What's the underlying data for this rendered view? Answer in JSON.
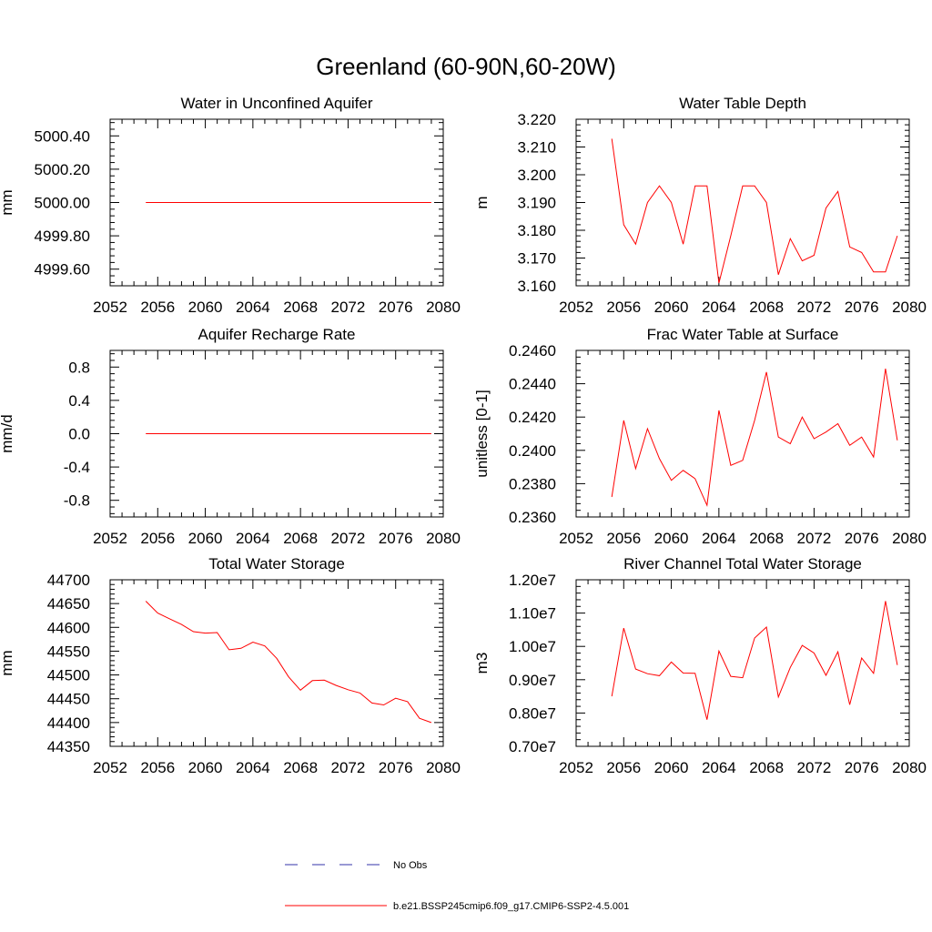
{
  "figure_title": "Greenland (60-90N,60-20W)",
  "chart_data": [
    {
      "type": "line",
      "title": "Water in Unconfined Aquifer",
      "ylabel": "mm",
      "xlim": [
        2052,
        2080
      ],
      "ylim": [
        4999.5,
        5000.5
      ],
      "xticks": [
        2052,
        2056,
        2060,
        2064,
        2068,
        2072,
        2076,
        2080
      ],
      "xtick_labels": [
        "2052",
        "2056",
        "2060",
        "2064",
        "2068",
        "2072",
        "2076",
        "2080"
      ],
      "yticks": [
        4999.6,
        4999.8,
        5000.0,
        5000.2,
        5000.4
      ],
      "ytick_labels": [
        "4999.60",
        "4999.80",
        "5000.00",
        "5000.20",
        "5000.40"
      ],
      "series": [
        {
          "color": "#ff0000",
          "x": [
            2055,
            2056,
            2057,
            2058,
            2059,
            2060,
            2061,
            2062,
            2063,
            2064,
            2065,
            2066,
            2067,
            2068,
            2069,
            2070,
            2071,
            2072,
            2073,
            2074,
            2075,
            2076,
            2077,
            2078,
            2079
          ],
          "y": [
            5000,
            5000,
            5000,
            5000,
            5000,
            5000,
            5000,
            5000,
            5000,
            5000,
            5000,
            5000,
            5000,
            5000,
            5000,
            5000,
            5000,
            5000,
            5000,
            5000,
            5000,
            5000,
            5000,
            5000,
            5000
          ]
        }
      ]
    },
    {
      "type": "line",
      "title": "Water Table Depth",
      "ylabel": "m",
      "xlim": [
        2052,
        2080
      ],
      "ylim": [
        3.16,
        3.22
      ],
      "xticks": [
        2052,
        2056,
        2060,
        2064,
        2068,
        2072,
        2076,
        2080
      ],
      "xtick_labels": [
        "2052",
        "2056",
        "2060",
        "2064",
        "2068",
        "2072",
        "2076",
        "2080"
      ],
      "yticks": [
        3.16,
        3.17,
        3.18,
        3.19,
        3.2,
        3.21,
        3.22
      ],
      "ytick_labels": [
        "3.160",
        "3.170",
        "3.180",
        "3.190",
        "3.200",
        "3.210",
        "3.220"
      ],
      "series": [
        {
          "color": "#ff0000",
          "x": [
            2055,
            2056,
            2057,
            2058,
            2059,
            2060,
            2061,
            2062,
            2063,
            2064,
            2065,
            2066,
            2067,
            2068,
            2069,
            2070,
            2071,
            2072,
            2073,
            2074,
            2075,
            2076,
            2077,
            2078,
            2079
          ],
          "y": [
            3.213,
            3.182,
            3.175,
            3.19,
            3.196,
            3.19,
            3.175,
            3.196,
            3.196,
            3.161,
            3.178,
            3.196,
            3.196,
            3.19,
            3.164,
            3.177,
            3.169,
            3.171,
            3.188,
            3.194,
            3.174,
            3.172,
            3.165,
            3.165,
            3.178
          ]
        }
      ]
    },
    {
      "type": "line",
      "title": "Aquifer Recharge Rate",
      "ylabel": "mm/d",
      "xlim": [
        2052,
        2080
      ],
      "ylim": [
        -1.0,
        1.0
      ],
      "xticks": [
        2052,
        2056,
        2060,
        2064,
        2068,
        2072,
        2076,
        2080
      ],
      "xtick_labels": [
        "2052",
        "2056",
        "2060",
        "2064",
        "2068",
        "2072",
        "2076",
        "2080"
      ],
      "yticks": [
        -0.8,
        -0.4,
        0.0,
        0.4,
        0.8
      ],
      "ytick_labels": [
        "-0.8",
        "-0.4",
        "0.0",
        "0.4",
        "0.8"
      ],
      "series": [
        {
          "color": "#ff0000",
          "x": [
            2055,
            2056,
            2057,
            2058,
            2059,
            2060,
            2061,
            2062,
            2063,
            2064,
            2065,
            2066,
            2067,
            2068,
            2069,
            2070,
            2071,
            2072,
            2073,
            2074,
            2075,
            2076,
            2077,
            2078,
            2079
          ],
          "y": [
            0,
            0,
            0,
            0,
            0,
            0,
            0,
            0,
            0,
            0,
            0,
            0,
            0,
            0,
            0,
            0,
            0,
            0,
            0,
            0,
            0,
            0,
            0,
            0,
            0
          ]
        }
      ]
    },
    {
      "type": "line",
      "title": "Frac Water Table at Surface",
      "ylabel": "unitless [0-1]",
      "xlim": [
        2052,
        2080
      ],
      "ylim": [
        0.236,
        0.246
      ],
      "xticks": [
        2052,
        2056,
        2060,
        2064,
        2068,
        2072,
        2076,
        2080
      ],
      "xtick_labels": [
        "2052",
        "2056",
        "2060",
        "2064",
        "2068",
        "2072",
        "2076",
        "2080"
      ],
      "yticks": [
        0.236,
        0.238,
        0.24,
        0.242,
        0.244,
        0.246
      ],
      "ytick_labels": [
        "0.2360",
        "0.2380",
        "0.2400",
        "0.2420",
        "0.2440",
        "0.2460"
      ],
      "series": [
        {
          "color": "#ff0000",
          "x": [
            2055,
            2056,
            2057,
            2058,
            2059,
            2060,
            2061,
            2062,
            2063,
            2064,
            2065,
            2066,
            2067,
            2068,
            2069,
            2070,
            2071,
            2072,
            2073,
            2074,
            2075,
            2076,
            2077,
            2078,
            2079
          ],
          "y": [
            0.2372,
            0.2418,
            0.2389,
            0.2413,
            0.2395,
            0.2382,
            0.2388,
            0.2383,
            0.2367,
            0.2424,
            0.2391,
            0.2394,
            0.2418,
            0.2447,
            0.2408,
            0.2404,
            0.242,
            0.2407,
            0.2411,
            0.2416,
            0.2403,
            0.2408,
            0.2396,
            0.2449,
            0.2406
          ]
        }
      ]
    },
    {
      "type": "line",
      "title": "Total Water Storage",
      "ylabel": "mm",
      "xlim": [
        2052,
        2080
      ],
      "ylim": [
        44350,
        44700
      ],
      "xticks": [
        2052,
        2056,
        2060,
        2064,
        2068,
        2072,
        2076,
        2080
      ],
      "xtick_labels": [
        "2052",
        "2056",
        "2060",
        "2064",
        "2068",
        "2072",
        "2076",
        "2080"
      ],
      "yticks": [
        44350,
        44400,
        44450,
        44500,
        44550,
        44600,
        44650,
        44700
      ],
      "ytick_labels": [
        "44350",
        "44400",
        "44450",
        "44500",
        "44550",
        "44600",
        "44650",
        "44700"
      ],
      "series": [
        {
          "color": "#ff0000",
          "x": [
            2055,
            2056,
            2057,
            2058,
            2059,
            2060,
            2061,
            2062,
            2063,
            2064,
            2065,
            2066,
            2067,
            2068,
            2069,
            2070,
            2071,
            2072,
            2073,
            2074,
            2075,
            2076,
            2077,
            2078,
            2079
          ],
          "y": [
            44655,
            44630,
            44618,
            44606,
            44591,
            44588,
            44589,
            44553,
            44556,
            44569,
            44561,
            44535,
            44496,
            44468,
            44488,
            44489,
            44478,
            44469,
            44462,
            44441,
            44437,
            44451,
            44444,
            44409,
            44400
          ]
        }
      ]
    },
    {
      "type": "line",
      "title": "River Channel Total Water Storage",
      "ylabel": "m3",
      "xlim": [
        2052,
        2080
      ],
      "ylim": [
        7000000,
        12000000
      ],
      "xticks": [
        2052,
        2056,
        2060,
        2064,
        2068,
        2072,
        2076,
        2080
      ],
      "xtick_labels": [
        "2052",
        "2056",
        "2060",
        "2064",
        "2068",
        "2072",
        "2076",
        "2080"
      ],
      "yticks": [
        7000000,
        8000000,
        9000000,
        10000000,
        11000000,
        12000000
      ],
      "ytick_labels": [
        "0.70e7",
        "0.80e7",
        "0.90e7",
        "1.00e7",
        "1.10e7",
        "1.20e7"
      ],
      "series": [
        {
          "color": "#ff0000",
          "x": [
            2055,
            2056,
            2057,
            2058,
            2059,
            2060,
            2061,
            2062,
            2063,
            2064,
            2065,
            2066,
            2067,
            2068,
            2069,
            2070,
            2071,
            2072,
            2073,
            2074,
            2075,
            2076,
            2077,
            2078,
            2079
          ],
          "y": [
            8500000,
            10550000,
            9320000,
            9180000,
            9120000,
            9530000,
            9200000,
            9190000,
            7800000,
            9860000,
            9100000,
            9060000,
            10250000,
            10580000,
            8480000,
            9370000,
            10030000,
            9800000,
            9130000,
            9840000,
            8250000,
            9650000,
            9190000,
            11360000,
            9440000
          ]
        }
      ]
    }
  ],
  "legend": [
    {
      "label": "No Obs",
      "color": "#3333aa",
      "style": "dashed"
    },
    {
      "label": "b.e21.BSSP245cmip6.f09_g17.CMIP6-SSP2-4.5.001",
      "color": "#ff0000",
      "style": "solid"
    }
  ]
}
